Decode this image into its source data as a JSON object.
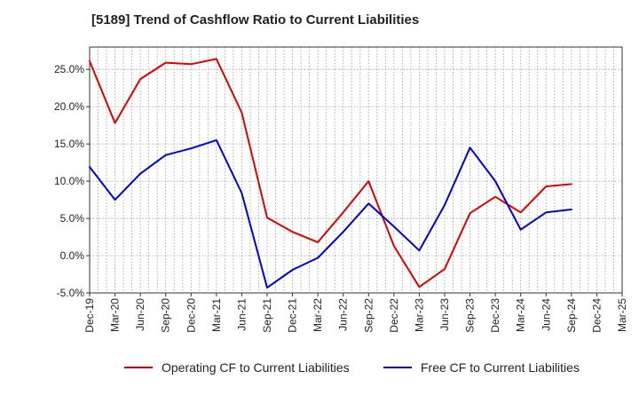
{
  "chart_data": {
    "type": "line",
    "title": "[5189]  Trend of Cashflow Ratio to Current Liabilities",
    "xlabel": "",
    "ylabel": "",
    "categories": [
      "Dec-19",
      "Mar-20",
      "Jun-20",
      "Sep-20",
      "Dec-20",
      "Mar-21",
      "Jun-21",
      "Sep-21",
      "Dec-21",
      "Mar-22",
      "Jun-22",
      "Sep-22",
      "Dec-22",
      "Mar-23",
      "Jun-23",
      "Sep-23",
      "Dec-23",
      "Mar-24",
      "Jun-24",
      "Sep-24",
      "Dec-24",
      "Mar-25"
    ],
    "y_ticks": [
      "-5.0%",
      "0.0%",
      "5.0%",
      "10.0%",
      "15.0%",
      "20.0%",
      "25.0%"
    ],
    "ylim": [
      -5,
      28
    ],
    "grid": true,
    "legend_position": "bottom",
    "series": [
      {
        "name": "Operating CF to Current Liabilities",
        "color": "#dd0000",
        "values": [
          26.1,
          17.8,
          23.7,
          25.9,
          25.7,
          26.4,
          19.2,
          5.1,
          3.2,
          1.8,
          5.8,
          10.0,
          1.3,
          -4.2,
          -1.8,
          5.7,
          7.9,
          5.8,
          9.3,
          9.6,
          null,
          null
        ]
      },
      {
        "name": "Free CF to Current Liabilities",
        "color": "#0000dd",
        "values": [
          11.9,
          7.5,
          11.0,
          13.5,
          14.4,
          15.5,
          8.4,
          -4.3,
          -1.9,
          -0.3,
          3.2,
          7.0,
          3.9,
          0.7,
          6.8,
          14.5,
          10.0,
          3.5,
          5.8,
          6.2,
          null,
          null
        ]
      }
    ]
  }
}
